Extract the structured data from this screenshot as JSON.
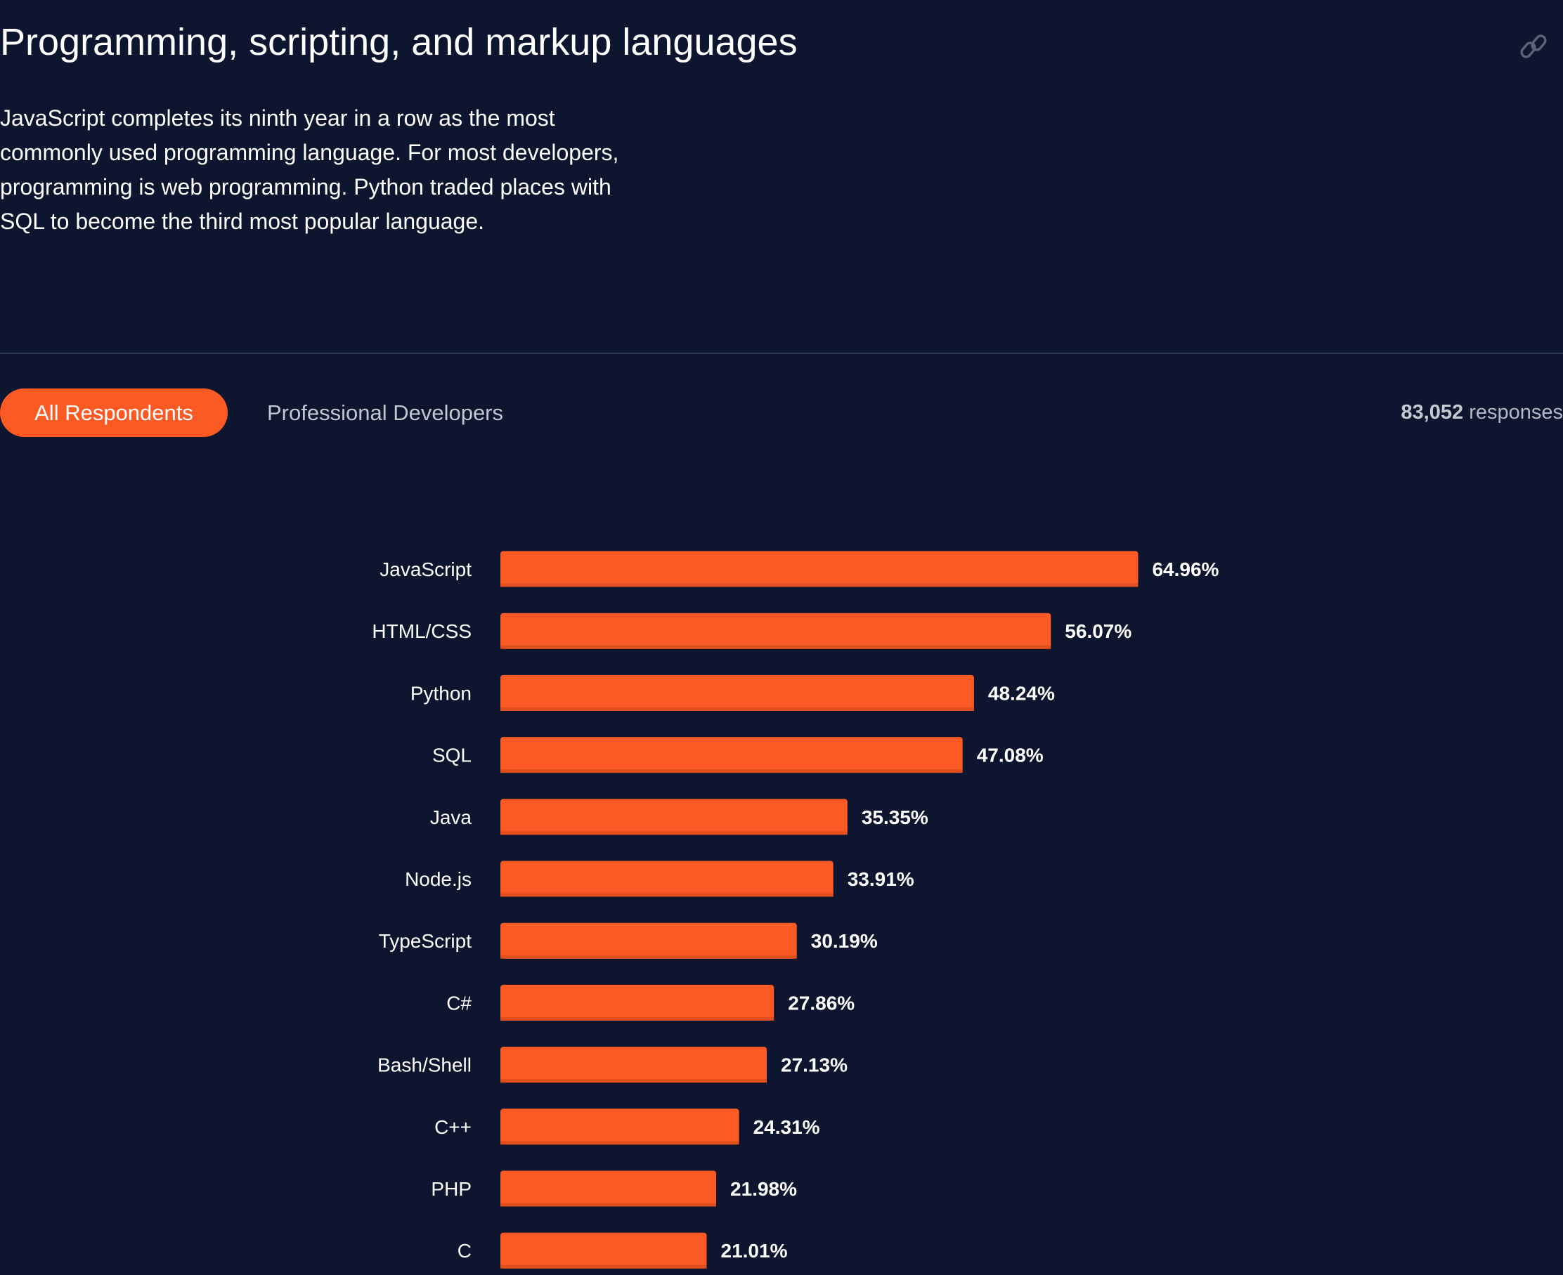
{
  "header": {
    "title": "Programming, scripting, and markup languages",
    "description": "JavaScript completes its ninth year in a row as the most commonly used programming language. For most developers, programming is web programming. Python traded places with SQL to become the third most popular language.",
    "link_icon": "link-icon"
  },
  "tabs": [
    {
      "label": "All Respondents",
      "active": true
    },
    {
      "label": "Professional Developers",
      "active": false
    }
  ],
  "responses": {
    "count": "83,052",
    "label": "responses"
  },
  "colors": {
    "background": "#0d152f",
    "accent": "#fb5a24"
  },
  "chart_data": {
    "type": "bar",
    "orientation": "horizontal",
    "categories": [
      "JavaScript",
      "HTML/CSS",
      "Python",
      "SQL",
      "Java",
      "Node.js",
      "TypeScript",
      "C#",
      "Bash/Shell",
      "C++",
      "PHP",
      "C"
    ],
    "values": [
      64.96,
      56.07,
      48.24,
      47.08,
      35.35,
      33.91,
      30.19,
      27.86,
      27.13,
      24.31,
      21.98,
      21.01
    ],
    "value_labels": [
      "64.96%",
      "56.07%",
      "48.24%",
      "47.08%",
      "35.35%",
      "33.91%",
      "30.19%",
      "27.86%",
      "27.13%",
      "24.31%",
      "21.98%",
      "21.01%"
    ],
    "unit": "%",
    "bar_color": "#fb5a24",
    "grid": false
  }
}
